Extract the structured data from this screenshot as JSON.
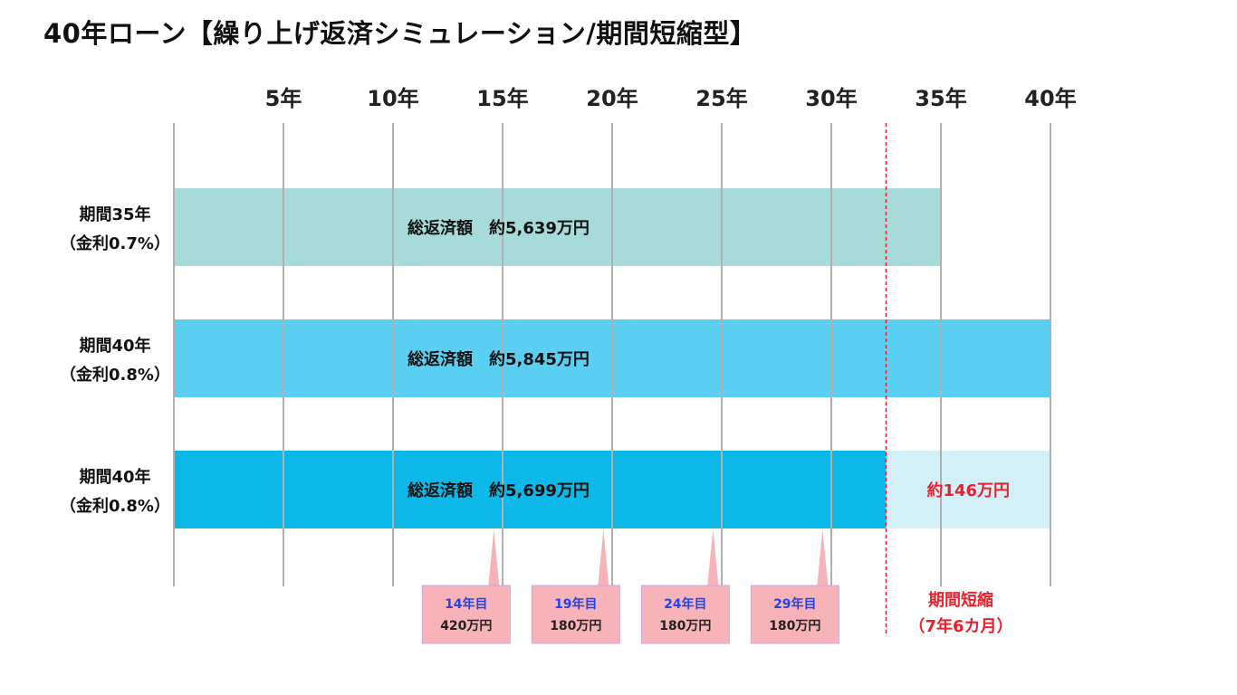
{
  "title": "40年ローン【繰り上げ返済シミュレーション/期間短縮型】",
  "colors": {
    "grid": "#b0b0b0",
    "saving_text": "#e8222a",
    "callout_fill": "#f7b3b7",
    "callout_border": "#c9a7ea",
    "callout_year": "#2244ee",
    "shorten_line": "#e8222a",
    "saved_fill": "#d3f0f8"
  },
  "chart_data": {
    "type": "bar",
    "orientation": "horizontal",
    "x_ticks": [
      {
        "value": 5,
        "label": "5年"
      },
      {
        "value": 10,
        "label": "10年"
      },
      {
        "value": 15,
        "label": "15年"
      },
      {
        "value": 20,
        "label": "20年"
      },
      {
        "value": 25,
        "label": "25年"
      },
      {
        "value": 30,
        "label": "30年"
      },
      {
        "value": 35,
        "label": "35年"
      },
      {
        "value": 40,
        "label": "40年"
      }
    ],
    "xlim": [
      0,
      40
    ],
    "grid": true,
    "bars": [
      {
        "label_line1": "期間35年",
        "label_line2": "（金利0.7%）",
        "years": 35,
        "total": "総返済額　約5,639万円",
        "color": "#a6dbd9"
      },
      {
        "label_line1": "期間40年",
        "label_line2": "（金利0.8%）",
        "years": 40,
        "total": "総返済額　約5,845万円",
        "color": "#5acff2"
      },
      {
        "label_line1": "期間40年",
        "label_line2": "（金利0.8%）",
        "years": 32.5,
        "total": "総返済額　約5,699万円",
        "color": "#0cb8e8",
        "saved_until": 40,
        "saving": "約146万円"
      }
    ],
    "prepayments": [
      {
        "year": 14.6,
        "year_label": "14年目",
        "amount": "420万円"
      },
      {
        "year": 19.6,
        "year_label": "19年目",
        "amount": "180万円"
      },
      {
        "year": 24.6,
        "year_label": "24年目",
        "amount": "180万円"
      },
      {
        "year": 29.6,
        "year_label": "29年目",
        "amount": "180万円"
      }
    ],
    "shortening": {
      "year": 32.5,
      "line1": "期間短縮",
      "line2": "（7年6カ月）"
    }
  }
}
